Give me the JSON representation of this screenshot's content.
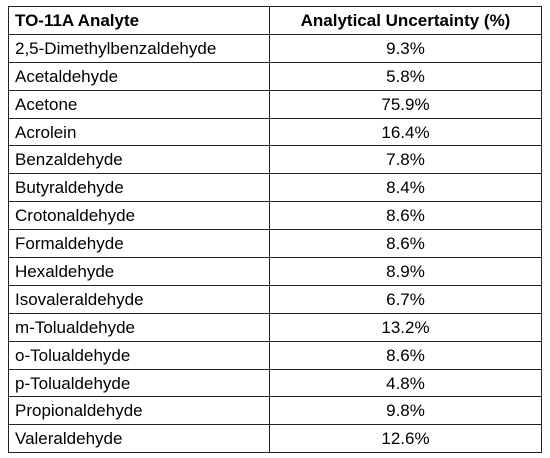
{
  "table": {
    "header": [
      "TO-11A Analyte",
      "Analytical Uncertainty (%)"
    ],
    "rows": [
      [
        "2,5-Dimethylbenzaldehyde",
        "9.3%"
      ],
      [
        "Acetaldehyde",
        "5.8%"
      ],
      [
        "Acetone",
        "75.9%"
      ],
      [
        "Acrolein",
        "16.4%"
      ],
      [
        "Benzaldehyde",
        "7.8%"
      ],
      [
        "Butyraldehyde",
        "8.4%"
      ],
      [
        "Crotonaldehyde",
        "8.6%"
      ],
      [
        "Formaldehyde",
        "8.6%"
      ],
      [
        "Hexaldehyde",
        "8.9%"
      ],
      [
        "Isovaleraldehyde",
        "6.7%"
      ],
      [
        "m-Tolualdehyde",
        "13.2%"
      ],
      [
        "o-Tolualdehyde",
        "8.6%"
      ],
      [
        "p-Tolualdehyde",
        "4.8%"
      ],
      [
        "Propionaldehyde",
        "9.8%"
      ],
      [
        "Valeraldehyde",
        "12.6%"
      ]
    ]
  }
}
